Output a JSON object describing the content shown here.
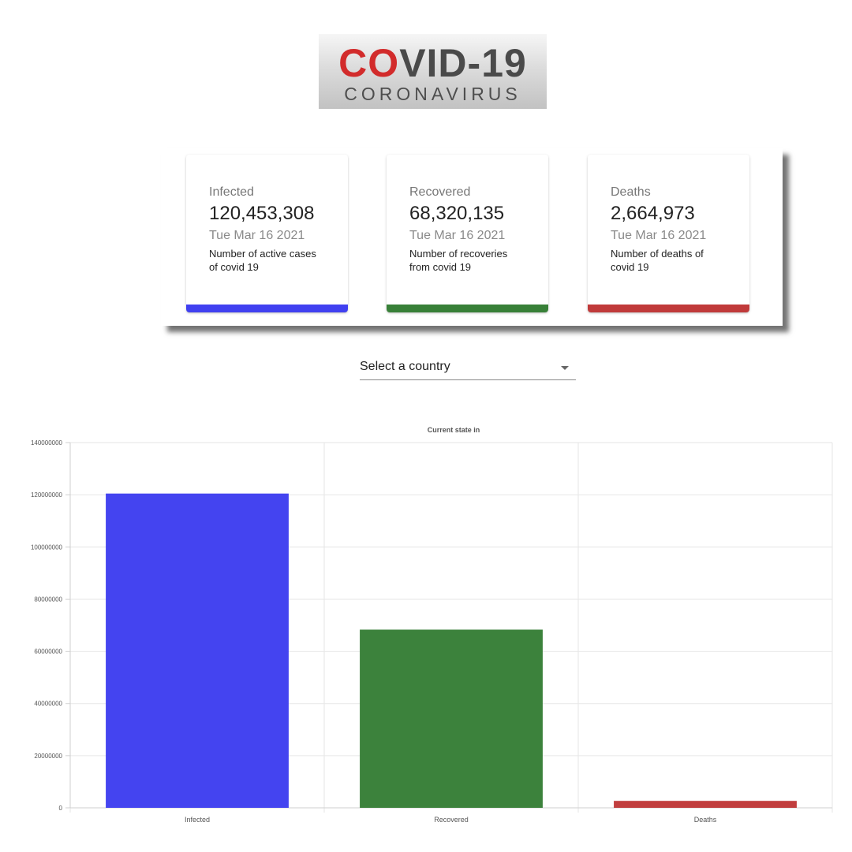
{
  "logo": {
    "main": "COVID-19",
    "sub": "CORONAVIRUS"
  },
  "cards": [
    {
      "title": "Infected",
      "value": "120,453,308",
      "date": "Tue Mar 16 2021",
      "desc": "Number of active cases of covid 19",
      "color": "#4040f0"
    },
    {
      "title": "Recovered",
      "value": "68,320,135",
      "date": "Tue Mar 16 2021",
      "desc": "Number of recoveries from covid 19",
      "color": "#388038"
    },
    {
      "title": "Deaths",
      "value": "2,664,973",
      "date": "Tue Mar 16 2021",
      "desc": "Number of deaths of covid 19",
      "color": "#c03a3a"
    }
  ],
  "country_select": {
    "placeholder": "Select a country"
  },
  "chart_data": {
    "type": "bar",
    "title": "Current state in",
    "categories": [
      "Infected",
      "Recovered",
      "Deaths"
    ],
    "values": [
      120453308,
      68320135,
      2664973
    ],
    "colors": [
      "#4040f0",
      "#388038",
      "#c03a3a"
    ],
    "ylim": [
      0,
      140000000
    ],
    "yticks": [
      0,
      20000000,
      40000000,
      60000000,
      80000000,
      100000000,
      120000000,
      140000000
    ],
    "xlabel": "",
    "ylabel": "",
    "grid": true,
    "legend": "none"
  }
}
